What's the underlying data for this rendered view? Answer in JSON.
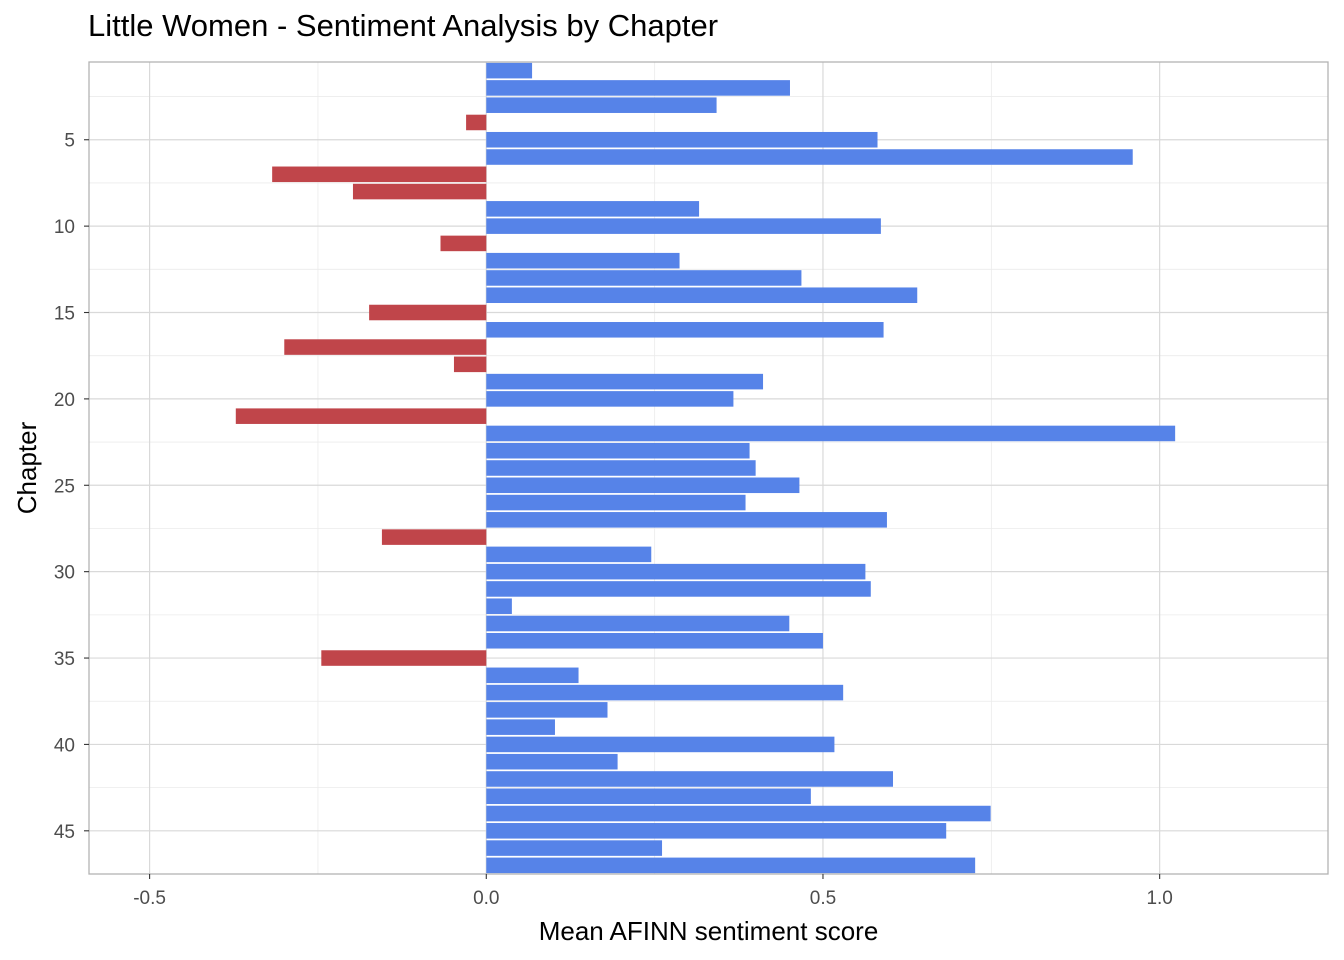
{
  "chart_data": {
    "type": "bar",
    "orientation": "horizontal",
    "title": "Little Women - Sentiment Analysis by Chapter",
    "xlabel": "Mean AFINN sentiment score",
    "ylabel": "Chapter",
    "xlim": [
      -0.59,
      1.25
    ],
    "x_ticks": [
      -0.5,
      0.0,
      0.5,
      1.0
    ],
    "x_tick_labels": [
      "-0.5",
      "0.0",
      "0.5",
      "1.0"
    ],
    "y_ticks": [
      5,
      10,
      15,
      20,
      25,
      30,
      35,
      40,
      45
    ],
    "y_tick_labels": [
      "5",
      "10",
      "15",
      "20",
      "25",
      "30",
      "35",
      "40",
      "45"
    ],
    "ylim": [
      0.5,
      47.5
    ],
    "y_reversed": true,
    "grid": true,
    "positive_color": "#5683E8",
    "negative_color": "#C0454A",
    "chapters": [
      1,
      2,
      3,
      4,
      5,
      6,
      7,
      8,
      9,
      10,
      11,
      12,
      13,
      14,
      15,
      16,
      17,
      18,
      19,
      20,
      21,
      22,
      23,
      24,
      25,
      26,
      27,
      28,
      29,
      30,
      31,
      32,
      33,
      34,
      35,
      36,
      37,
      38,
      39,
      40,
      41,
      42,
      43,
      44,
      45,
      46,
      47
    ],
    "values": [
      0.068,
      0.451,
      0.342,
      -0.03,
      0.581,
      0.96,
      -0.318,
      -0.198,
      0.316,
      0.586,
      -0.068,
      0.287,
      0.468,
      0.64,
      -0.174,
      0.59,
      -0.3,
      -0.048,
      0.411,
      0.367,
      -0.372,
      1.023,
      0.391,
      0.4,
      0.465,
      0.385,
      0.595,
      -0.155,
      0.245,
      0.563,
      0.571,
      0.038,
      0.45,
      0.5,
      -0.245,
      0.137,
      0.53,
      0.18,
      0.102,
      0.517,
      0.195,
      0.604,
      0.482,
      0.749,
      0.683,
      0.261,
      0.726
    ]
  }
}
